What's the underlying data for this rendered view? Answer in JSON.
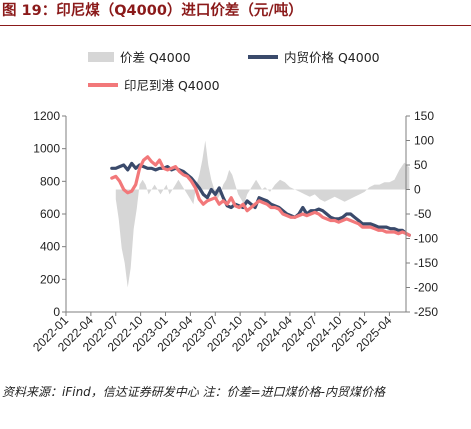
{
  "figure_title": "图 19：印尼煤（Q4000）进口价差（元/吨）",
  "note": "资料来源：iFind，信达证券研发中心 注：价差=进口煤价格-内贸煤价格",
  "colors": {
    "title": "#8b1a1a",
    "spread": "#d6d6d6",
    "domestic": "#3a4a6b",
    "indonesia": "#f2787a",
    "axis": "#7f7f7f"
  },
  "chart_data": {
    "type": "line",
    "legend": [
      "价差 Q4000",
      "内贸价格 Q4000",
      "印尼到港 Q4000"
    ],
    "legend_position": "top",
    "grid": false,
    "x_tick_labels": [
      "2022-01",
      "2022-04",
      "2022-07",
      "2022-10",
      "2023-01",
      "2023-04",
      "2023-07",
      "2023-10",
      "2024-01",
      "2024-04",
      "2024-07",
      "2024-10",
      "2025-01",
      "2025-04"
    ],
    "x_range": [
      "2022-01",
      "2025-06"
    ],
    "y_left": {
      "range": [
        0,
        1200
      ],
      "ticks": [
        0,
        200,
        400,
        600,
        800,
        1000,
        1200
      ]
    },
    "y_right": {
      "range": [
        -250,
        150
      ],
      "ticks": [
        -250,
        -200,
        -150,
        -100,
        -50,
        0,
        50,
        100,
        150
      ]
    },
    "series": [
      {
        "name": "价差 Q4000",
        "axis": "right",
        "kind": "area",
        "x": [
          2022.5,
          2022.53,
          2022.56,
          2022.59,
          2022.62,
          2022.65,
          2022.68,
          2022.71,
          2022.74,
          2022.77,
          2022.8,
          2022.83,
          2022.86,
          2022.89,
          2022.92,
          2022.95,
          2022.98,
          2023.01,
          2023.04,
          2023.07,
          2023.1,
          2023.13,
          2023.16,
          2023.19,
          2023.22,
          2023.25,
          2023.28,
          2023.31,
          2023.34,
          2023.37,
          2023.4,
          2023.43,
          2023.46,
          2023.49,
          2023.52,
          2023.55,
          2023.58,
          2023.61,
          2023.64,
          2023.67,
          2023.7,
          2023.73,
          2023.76,
          2023.79,
          2023.82,
          2023.85,
          2023.88,
          2023.91,
          2023.94,
          2023.97,
          2024.0,
          2024.05,
          2024.1,
          2024.15,
          2024.2,
          2024.25,
          2024.3,
          2024.35,
          2024.4,
          2024.45,
          2024.5,
          2024.55,
          2024.6,
          2024.65,
          2024.7,
          2024.75,
          2024.8,
          2024.85,
          2024.9,
          2024.95,
          2025.0,
          2025.05,
          2025.1,
          2025.15,
          2025.2,
          2025.25,
          2025.3,
          2025.35,
          2025.4,
          2025.45
        ],
        "values": [
          -20,
          -60,
          -120,
          -150,
          -200,
          -160,
          -80,
          -40,
          10,
          20,
          10,
          -10,
          0,
          10,
          0,
          -10,
          0,
          10,
          -10,
          0,
          10,
          20,
          10,
          0,
          -10,
          -20,
          -30,
          10,
          30,
          60,
          100,
          50,
          20,
          0,
          -20,
          -10,
          10,
          20,
          40,
          30,
          10,
          -10,
          -20,
          -30,
          -10,
          0,
          10,
          20,
          10,
          0,
          5,
          -5,
          10,
          20,
          15,
          5,
          0,
          -5,
          -10,
          -15,
          -10,
          -20,
          -25,
          -20,
          -15,
          -20,
          -25,
          -20,
          -15,
          -10,
          -5,
          5,
          10,
          10,
          15,
          15,
          20,
          40,
          55,
          45
        ]
      },
      {
        "name": "内贸价格 Q4000",
        "axis": "left",
        "x": [
          2022.46,
          2022.5,
          2022.54,
          2022.58,
          2022.62,
          2022.66,
          2022.7,
          2022.74,
          2022.78,
          2022.82,
          2022.86,
          2022.9,
          2022.94,
          2022.98,
          2023.02,
          2023.06,
          2023.1,
          2023.14,
          2023.18,
          2023.22,
          2023.26,
          2023.3,
          2023.34,
          2023.38,
          2023.42,
          2023.46,
          2023.5,
          2023.54,
          2023.58,
          2023.62,
          2023.66,
          2023.7,
          2023.74,
          2023.78,
          2023.82,
          2023.86,
          2023.9,
          2023.94,
          2023.98,
          2024.02,
          2024.06,
          2024.1,
          2024.14,
          2024.18,
          2024.22,
          2024.26,
          2024.3,
          2024.34,
          2024.38,
          2024.42,
          2024.46,
          2024.5,
          2024.54,
          2024.58,
          2024.62,
          2024.66,
          2024.7,
          2024.74,
          2024.78,
          2024.82,
          2024.86,
          2024.9,
          2024.94,
          2024.98,
          2025.02,
          2025.06,
          2025.1,
          2025.14,
          2025.18,
          2025.22,
          2025.26,
          2025.3,
          2025.34,
          2025.38,
          2025.42,
          2025.45
        ],
        "values": [
          880,
          880,
          890,
          900,
          870,
          910,
          880,
          900,
          890,
          880,
          880,
          870,
          880,
          880,
          890,
          870,
          880,
          870,
          860,
          840,
          820,
          790,
          760,
          720,
          700,
          750,
          720,
          760,
          700,
          650,
          640,
          660,
          650,
          640,
          680,
          660,
          640,
          700,
          690,
          680,
          660,
          650,
          640,
          620,
          600,
          590,
          580,
          600,
          640,
          600,
          620,
          620,
          630,
          620,
          600,
          580,
          570,
          570,
          580,
          600,
          600,
          580,
          560,
          540,
          540,
          540,
          530,
          520,
          520,
          520,
          510,
          510,
          500,
          500,
          480,
          470
        ]
      },
      {
        "name": "印尼到港 Q4000",
        "axis": "left",
        "x": [
          2022.46,
          2022.5,
          2022.54,
          2022.58,
          2022.62,
          2022.66,
          2022.7,
          2022.74,
          2022.78,
          2022.82,
          2022.86,
          2022.9,
          2022.94,
          2022.98,
          2023.02,
          2023.06,
          2023.1,
          2023.14,
          2023.18,
          2023.22,
          2023.26,
          2023.3,
          2023.34,
          2023.38,
          2023.42,
          2023.46,
          2023.5,
          2023.54,
          2023.58,
          2023.62,
          2023.66,
          2023.7,
          2023.74,
          2023.78,
          2023.82,
          2023.86,
          2023.9,
          2023.94,
          2023.98,
          2024.02,
          2024.06,
          2024.1,
          2024.14,
          2024.18,
          2024.22,
          2024.26,
          2024.3,
          2024.34,
          2024.38,
          2024.42,
          2024.46,
          2024.5,
          2024.54,
          2024.58,
          2024.62,
          2024.66,
          2024.7,
          2024.74,
          2024.78,
          2024.82,
          2024.86,
          2024.9,
          2024.94,
          2024.98,
          2025.02,
          2025.06,
          2025.1,
          2025.14,
          2025.18,
          2025.22,
          2025.26,
          2025.3,
          2025.34,
          2025.38,
          2025.42,
          2025.45
        ],
        "values": [
          820,
          830,
          800,
          750,
          730,
          740,
          780,
          880,
          930,
          950,
          920,
          900,
          930,
          880,
          870,
          880,
          890,
          860,
          840,
          830,
          800,
          760,
          690,
          660,
          680,
          690,
          700,
          660,
          680,
          660,
          700,
          650,
          640,
          660,
          620,
          640,
          660,
          680,
          670,
          660,
          640,
          640,
          630,
          600,
          590,
          580,
          580,
          590,
          600,
          590,
          600,
          610,
          600,
          580,
          570,
          560,
          560,
          550,
          560,
          570,
          560,
          550,
          540,
          520,
          520,
          520,
          510,
          500,
          500,
          490,
          490,
          490,
          480,
          490,
          480,
          470
        ]
      }
    ]
  }
}
